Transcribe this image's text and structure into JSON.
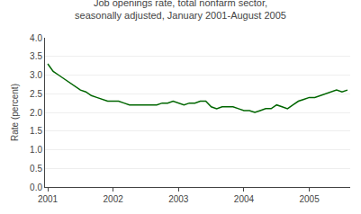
{
  "chart_data": {
    "type": "line",
    "title": "Job openings rate, total nonfarm sector,\nseasonally adjusted, January 2001-August 2005",
    "ylabel": "Rate (percent)",
    "categories": [
      "2001",
      null,
      null,
      null,
      null,
      null,
      null,
      null,
      null,
      null,
      null,
      null,
      "2002",
      null,
      null,
      null,
      null,
      null,
      null,
      null,
      null,
      null,
      null,
      null,
      "2003",
      null,
      null,
      null,
      null,
      null,
      null,
      null,
      null,
      null,
      null,
      null,
      "2004",
      null,
      null,
      null,
      null,
      null,
      null,
      null,
      null,
      null,
      null,
      null,
      "2005",
      null,
      null,
      null,
      null,
      null,
      null,
      null
    ],
    "values": [
      3.3,
      3.1,
      3.0,
      2.9,
      2.8,
      2.7,
      2.6,
      2.55,
      2.45,
      2.4,
      2.35,
      2.3,
      2.3,
      2.3,
      2.25,
      2.2,
      2.2,
      2.2,
      2.2,
      2.2,
      2.2,
      2.25,
      2.25,
      2.3,
      2.25,
      2.2,
      2.25,
      2.25,
      2.3,
      2.3,
      2.15,
      2.1,
      2.15,
      2.15,
      2.15,
      2.1,
      2.05,
      2.05,
      2.0,
      2.05,
      2.1,
      2.1,
      2.2,
      2.15,
      2.1,
      2.2,
      2.3,
      2.35,
      2.4,
      2.4,
      2.45,
      2.5,
      2.55,
      2.6,
      2.55,
      2.6
    ],
    "color": "#006600",
    "ylim": [
      0.0,
      4.0
    ],
    "yticks": [
      {
        "value": 0.0,
        "label": "0.0"
      },
      0.5,
      {
        "value": 1.0,
        "label": "1.0"
      },
      1.5,
      {
        "value": 2.0,
        "label": "2.0"
      },
      2.5,
      {
        "value": 3.0,
        "label": "3.0"
      },
      3.5,
      {
        "value": 4.0,
        "label": "4.0"
      }
    ],
    "grid": true
  }
}
